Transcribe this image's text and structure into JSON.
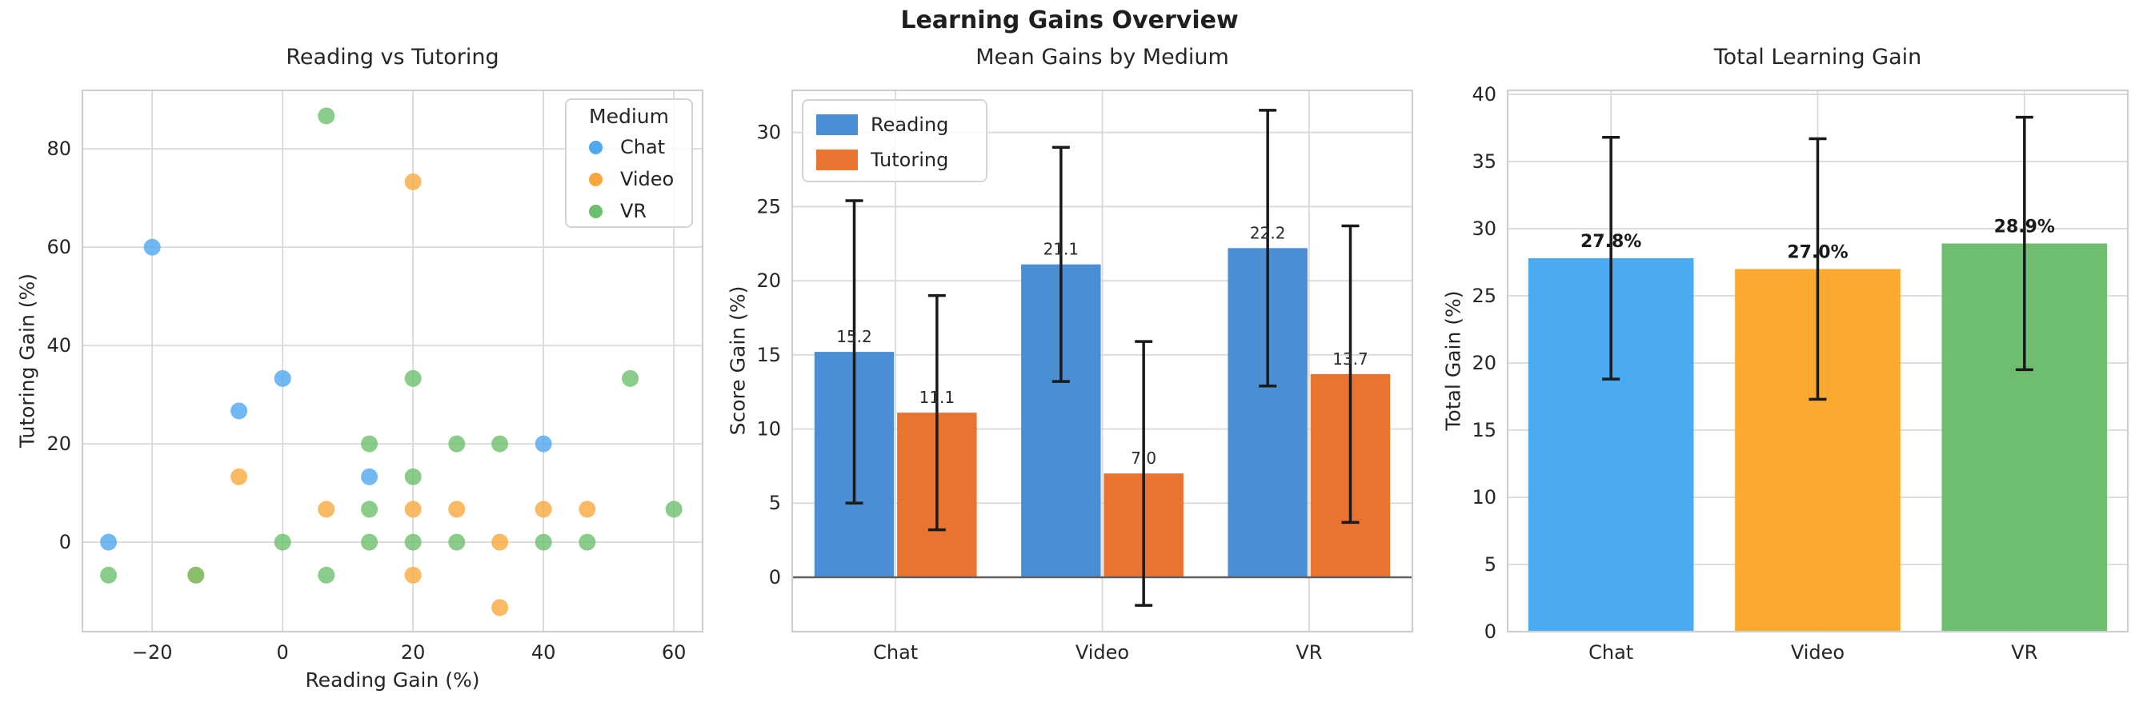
{
  "page_title": "Learning Gains Overview",
  "styles": {
    "grid_color": "#d9d9d9",
    "spine_color": "#cfcfcf",
    "text_color": "#262626",
    "errorbar_color": "#1a1a1a",
    "zero_line_color": "#606060"
  },
  "chart_data": [
    {
      "type": "scatter",
      "title": "Reading vs Tutoring",
      "xlabel": "Reading Gain (%)",
      "ylabel": "Tutoring Gain (%)",
      "xlim": [
        -30.7,
        64.4
      ],
      "ylim": [
        -18.2,
        91.9
      ],
      "xticks": [
        -20,
        0,
        20,
        40,
        60
      ],
      "yticks": [
        0,
        20,
        40,
        60,
        80
      ],
      "grid": true,
      "marker_opacity": 0.8,
      "legend": {
        "title": "Medium"
      },
      "series": [
        {
          "name": "Chat",
          "color": "#4fa8f0",
          "points": [
            [
              -26.7,
              0
            ],
            [
              -20,
              60
            ],
            [
              -6.7,
              26.7
            ],
            [
              0,
              33.3
            ],
            [
              13.3,
              13.3
            ],
            [
              40,
              20
            ]
          ]
        },
        {
          "name": "Video",
          "color": "#f9a73c",
          "points": [
            [
              -13.3,
              -6.7
            ],
            [
              -6.7,
              13.3
            ],
            [
              6.7,
              6.7
            ],
            [
              20,
              73.3
            ],
            [
              20,
              6.7
            ],
            [
              20,
              -6.7
            ],
            [
              26.7,
              6.7
            ],
            [
              33.3,
              -13.3
            ],
            [
              33.3,
              0
            ],
            [
              40,
              6.7
            ],
            [
              46.7,
              6.7
            ]
          ]
        },
        {
          "name": "VR",
          "color": "#6dbf6d",
          "points": [
            [
              -26.7,
              -6.7
            ],
            [
              -13.3,
              -6.7
            ],
            [
              0,
              0
            ],
            [
              6.7,
              86.7
            ],
            [
              6.7,
              -6.7
            ],
            [
              13.3,
              20
            ],
            [
              13.3,
              6.7
            ],
            [
              13.3,
              0
            ],
            [
              20,
              33.3
            ],
            [
              20,
              13.3
            ],
            [
              20,
              0
            ],
            [
              26.7,
              20
            ],
            [
              26.7,
              0
            ],
            [
              33.3,
              20
            ],
            [
              40,
              0
            ],
            [
              46.7,
              0
            ],
            [
              53.3,
              33.3
            ],
            [
              60,
              6.7
            ]
          ]
        }
      ]
    },
    {
      "type": "bar",
      "title": "Mean Gains by Medium",
      "ylabel": "Score Gain (%)",
      "categories": [
        "Chat",
        "Video",
        "VR"
      ],
      "ylim": [
        -3.67,
        32.84
      ],
      "yticks": [
        0,
        5,
        10,
        15,
        20,
        25,
        30
      ],
      "grid": true,
      "zero_line": true,
      "legend_entries": [
        "Reading",
        "Tutoring"
      ],
      "series": [
        {
          "name": "Reading",
          "color": "#4a8fd4",
          "values": [
            15.2,
            21.1,
            22.2
          ],
          "errors": [
            10.2,
            7.9,
            9.3
          ],
          "labels": [
            "15.2",
            "21.1",
            "22.2"
          ]
        },
        {
          "name": "Tutoring",
          "color": "#e8742f",
          "values": [
            11.1,
            7.0,
            13.7
          ],
          "errors": [
            7.9,
            8.9,
            10.0
          ],
          "labels": [
            "11.1",
            "7.0",
            "13.7"
          ]
        }
      ]
    },
    {
      "type": "bar",
      "title": "Total Learning Gain",
      "ylabel": "Total Gain (%)",
      "categories": [
        "Chat",
        "Video",
        "VR"
      ],
      "ylim": [
        0,
        40.3
      ],
      "yticks": [
        0,
        5,
        10,
        15,
        20,
        25,
        30,
        35,
        40
      ],
      "grid": true,
      "values": [
        27.8,
        27.0,
        28.9
      ],
      "errors": [
        9.0,
        9.7,
        9.4
      ],
      "labels": [
        "27.8%",
        "27.0%",
        "28.9%"
      ],
      "colors": [
        "#4babf2",
        "#fca92f",
        "#6fbe70"
      ]
    }
  ]
}
